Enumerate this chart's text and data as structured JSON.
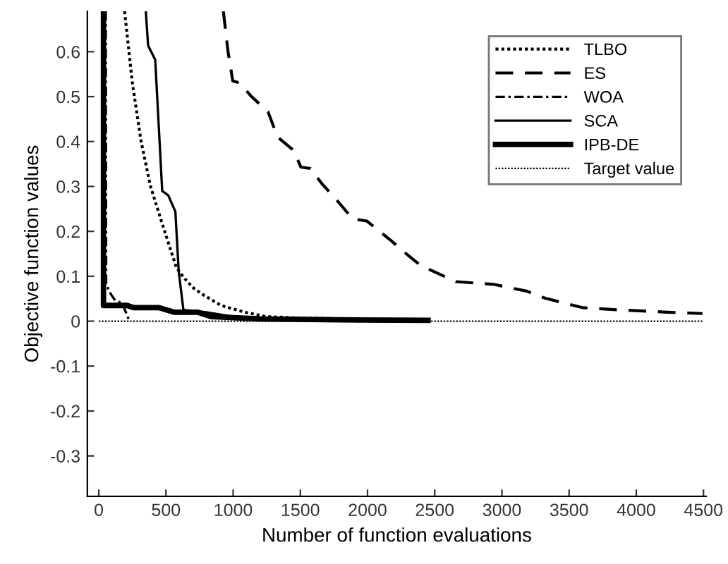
{
  "chart_data": {
    "type": "line",
    "xlabel": "Number of function evaluations",
    "ylabel": "Objective function values",
    "xlim": [
      -85,
      4520
    ],
    "ylim": [
      -0.39,
      0.69
    ],
    "xticks": [
      0,
      500,
      1000,
      1500,
      2000,
      2500,
      3000,
      3500,
      4000,
      4500
    ],
    "yticks": [
      -0.3,
      -0.2,
      -0.1,
      0,
      0.1,
      0.2,
      0.3,
      0.4,
      0.5,
      0.6
    ],
    "grid": false,
    "legend": "top right",
    "marker": "none",
    "series": [
      {
        "name": "TLBO",
        "color": "#000000",
        "line_style": "dotted",
        "x": [
          192,
          250,
          315,
          385,
          490,
          577,
          630,
          700,
          770,
          910,
          1085,
          1250,
          1500,
          2000,
          2450
        ],
        "values": [
          0.69,
          0.53,
          0.4,
          0.3,
          0.2,
          0.12,
          0.098,
          0.075,
          0.06,
          0.035,
          0.02,
          0.01,
          0.007,
          0.004,
          0.002
        ]
      },
      {
        "name": "ES",
        "color": "#000000",
        "line_style": "dashed",
        "x": [
          927,
          962,
          997,
          1050,
          1137,
          1260,
          1330,
          1451,
          1504,
          1574,
          1661,
          1784,
          1889,
          1994,
          2169,
          2308,
          2396,
          2658,
          2938,
          3183,
          3323,
          3603,
          3883,
          4230,
          4493
        ],
        "values": [
          0.69,
          0.6,
          0.535,
          0.53,
          0.5,
          0.466,
          0.41,
          0.38,
          0.343,
          0.34,
          0.306,
          0.265,
          0.228,
          0.223,
          0.181,
          0.145,
          0.124,
          0.088,
          0.082,
          0.067,
          0.051,
          0.03,
          0.025,
          0.02,
          0.017
        ]
      },
      {
        "name": "WOA",
        "color": "#000000",
        "line_style": "dashdot",
        "x": [
          52,
          55,
          90,
          122,
          175,
          228
        ],
        "values": [
          0.69,
          0.082,
          0.06,
          0.046,
          0.04,
          0
        ]
      },
      {
        "name": "SCA",
        "color": "#000000",
        "line_style": "solid",
        "x": [
          350,
          367,
          420,
          472,
          517,
          570,
          595,
          630,
          800,
          1000,
          1500,
          2000,
          2400
        ],
        "values": [
          0.69,
          0.614,
          0.582,
          0.29,
          0.28,
          0.244,
          0.11,
          0.025,
          0.02,
          0.01,
          0.005,
          0.002,
          0
        ]
      },
      {
        "name": "IPB-DE",
        "color": "#000000",
        "line_style": "solid",
        "x": [
          35,
          35,
          210,
          262,
          450,
          560,
          735,
          840,
          1200,
          1800,
          2450
        ],
        "values": [
          0.69,
          0.035,
          0.035,
          0.03,
          0.03,
          0.02,
          0.02,
          0.01,
          0.005,
          0.003,
          0.002
        ]
      },
      {
        "name": "Target value",
        "color": "#000000",
        "line_style": "dotted",
        "x": [
          0,
          4500
        ],
        "values": [
          0,
          0
        ]
      }
    ]
  }
}
